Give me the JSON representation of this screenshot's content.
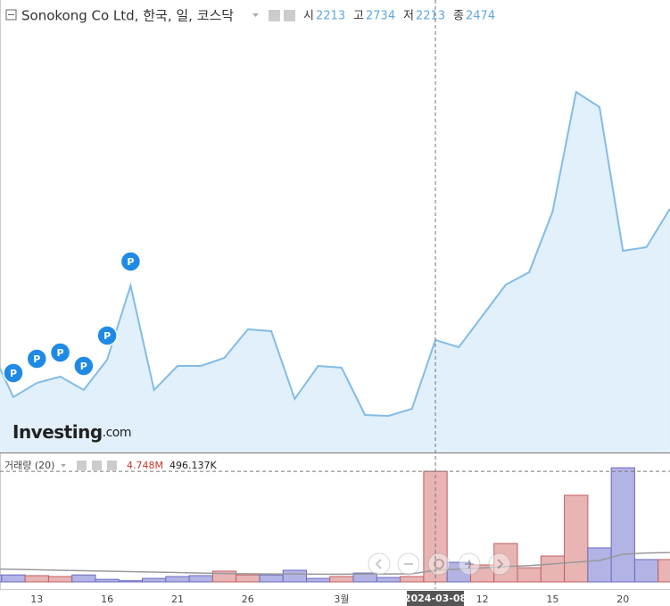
{
  "header": {
    "title": "Sonokong Co Ltd, 한국, 일, 코스닥",
    "ohlc": [
      {
        "label": "시",
        "value": 2213
      },
      {
        "label": "고",
        "value": 2734
      },
      {
        "label": "저",
        "value": 2213
      },
      {
        "label": "종",
        "value": 2474
      }
    ]
  },
  "logo": {
    "main": "Investing",
    "suffix": ".com"
  },
  "chart_data": [
    {
      "type": "area",
      "categories": [
        null,
        null,
        "13",
        null,
        null,
        "16",
        null,
        null,
        "21",
        null,
        null,
        "26",
        null,
        null,
        null,
        "3월",
        null,
        null,
        null,
        "2024-03-08",
        null,
        "12",
        null,
        null,
        "15",
        null,
        null,
        "20",
        null,
        null
      ],
      "values": [
        2426,
        2090,
        2186,
        2228,
        2138,
        2342,
        2840,
        2138,
        2300,
        2300,
        2354,
        2546,
        2534,
        2078,
        2300,
        2288,
        1970,
        1964,
        2012,
        2474,
        2426,
        2636,
        2846,
        2930,
        3338,
        4142,
        4040,
        3074,
        3098,
        3356
      ],
      "markers": [
        null,
        "P",
        "P",
        "P",
        "P",
        "P",
        "P",
        null,
        null,
        null,
        null,
        null,
        null,
        null,
        null,
        null,
        null,
        null,
        null,
        null,
        null,
        null,
        null,
        null,
        null,
        null,
        null,
        null,
        null,
        null
      ],
      "color": "#82bce8",
      "fill": "#e1f0fb",
      "ylim": [
        1718,
        4760
      ]
    },
    {
      "type": "bar",
      "title": "거래량 (20)",
      "value_text": "4.748M",
      "ma_text": "496.137K",
      "series": [
        {
          "type": "bar",
          "values": [
            300000,
            300000,
            270000,
            230000,
            300000,
            110000,
            50000,
            150000,
            230000,
            270000,
            460000,
            300000,
            300000,
            500000,
            150000,
            230000,
            380000,
            190000,
            230000,
            4748000,
            840000,
            730000,
            1650000,
            610000,
            1110000,
            3720000,
            1460000,
            4900000,
            960000,
            960000
          ],
          "colors": [
            "#b3b3e6",
            "#b3b3e6",
            "#e8b4b4",
            "#e8b4b4",
            "#b3b3e6",
            "#b3b3e6",
            "#b3b3e6",
            "#b3b3e6",
            "#b3b3e6",
            "#b3b3e6",
            "#e8b4b4",
            "#e8b4b4",
            "#b3b3e6",
            "#b3b3e6",
            "#b3b3e6",
            "#e8b4b4",
            "#b3b3e6",
            "#b3b3e6",
            "#e8b4b4",
            "#e8b4b4",
            "#b3b3e6",
            "#e8b4b4",
            "#e8b4b4",
            "#e8b4b4",
            "#e8b4b4",
            "#e8b4b4",
            "#b3b3e6",
            "#b3b3e6",
            "#b3b3e6",
            "#e8b4b4"
          ]
        },
        {
          "type": "line",
          "color": "#999999",
          "values": [
            560000,
            540000,
            520000,
            500000,
            480000,
            460000,
            440000,
            420000,
            400000,
            380000,
            360000,
            350000,
            340000,
            340000,
            330000,
            330000,
            340000,
            340000,
            350000,
            496137,
            550000,
            600000,
            660000,
            700000,
            770000,
            850000,
            920000,
            1190000,
            1240000,
            1260000
          ]
        }
      ],
      "ylim": [
        0,
        5556000
      ]
    }
  ]
}
